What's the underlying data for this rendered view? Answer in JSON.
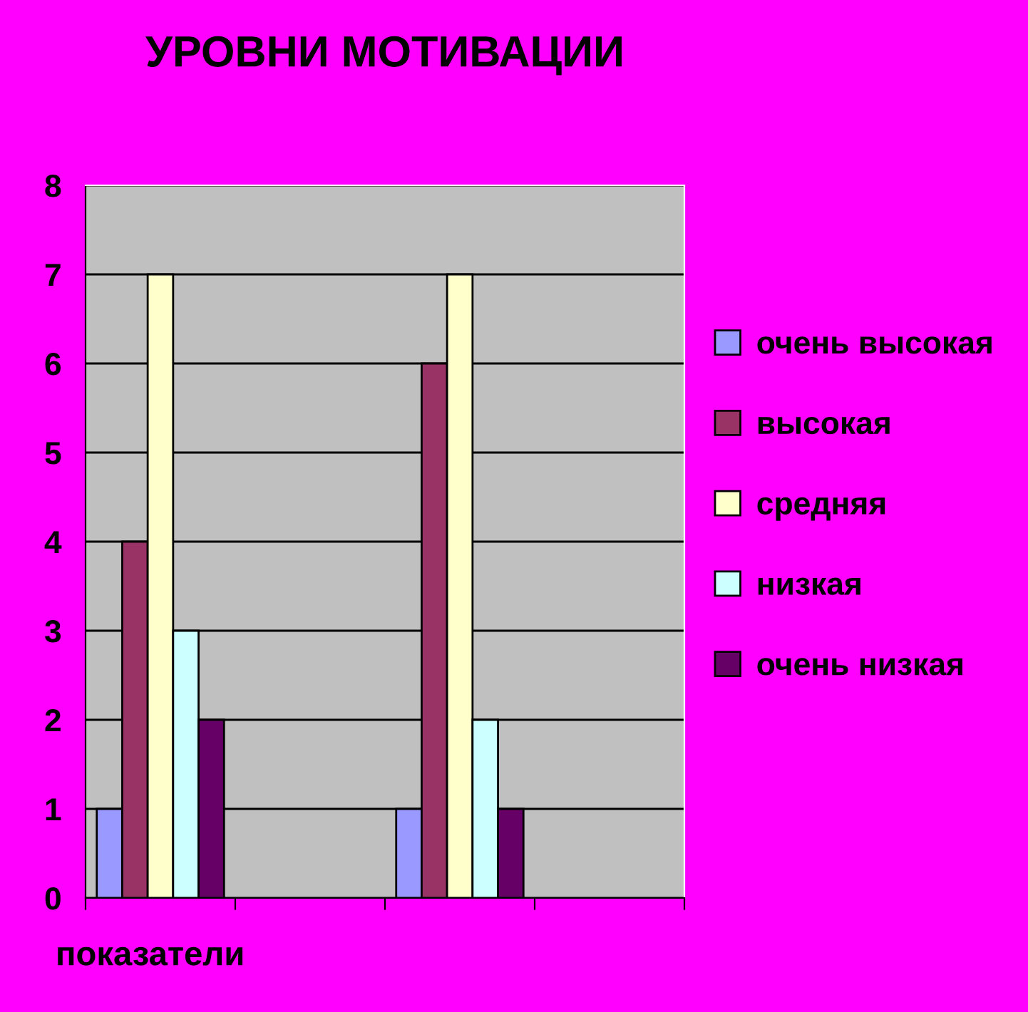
{
  "chart_data": {
    "type": "bar",
    "title": "УРОВНИ МОТИВАЦИИ",
    "xlabel": "показатели",
    "categories": [
      null,
      null,
      null,
      null
    ],
    "series": [
      {
        "name": "очень высокая",
        "color": "#9999ff",
        "values": [
          1,
          null,
          1,
          null
        ]
      },
      {
        "name": "высокая",
        "color": "#993366",
        "values": [
          4,
          null,
          6,
          null
        ]
      },
      {
        "name": "средняя",
        "color": "#ffffcc",
        "values": [
          7,
          null,
          7,
          null
        ]
      },
      {
        "name": "низкая",
        "color": "#ccffff",
        "values": [
          3,
          null,
          2,
          null
        ]
      },
      {
        "name": "очень низкая",
        "color": "#660066",
        "values": [
          2,
          null,
          1,
          null
        ]
      }
    ],
    "ylim": [
      0,
      8
    ],
    "yticks": [
      0,
      1,
      2,
      3,
      4,
      5,
      6,
      7,
      8
    ],
    "grid": "y",
    "legend": "right"
  }
}
